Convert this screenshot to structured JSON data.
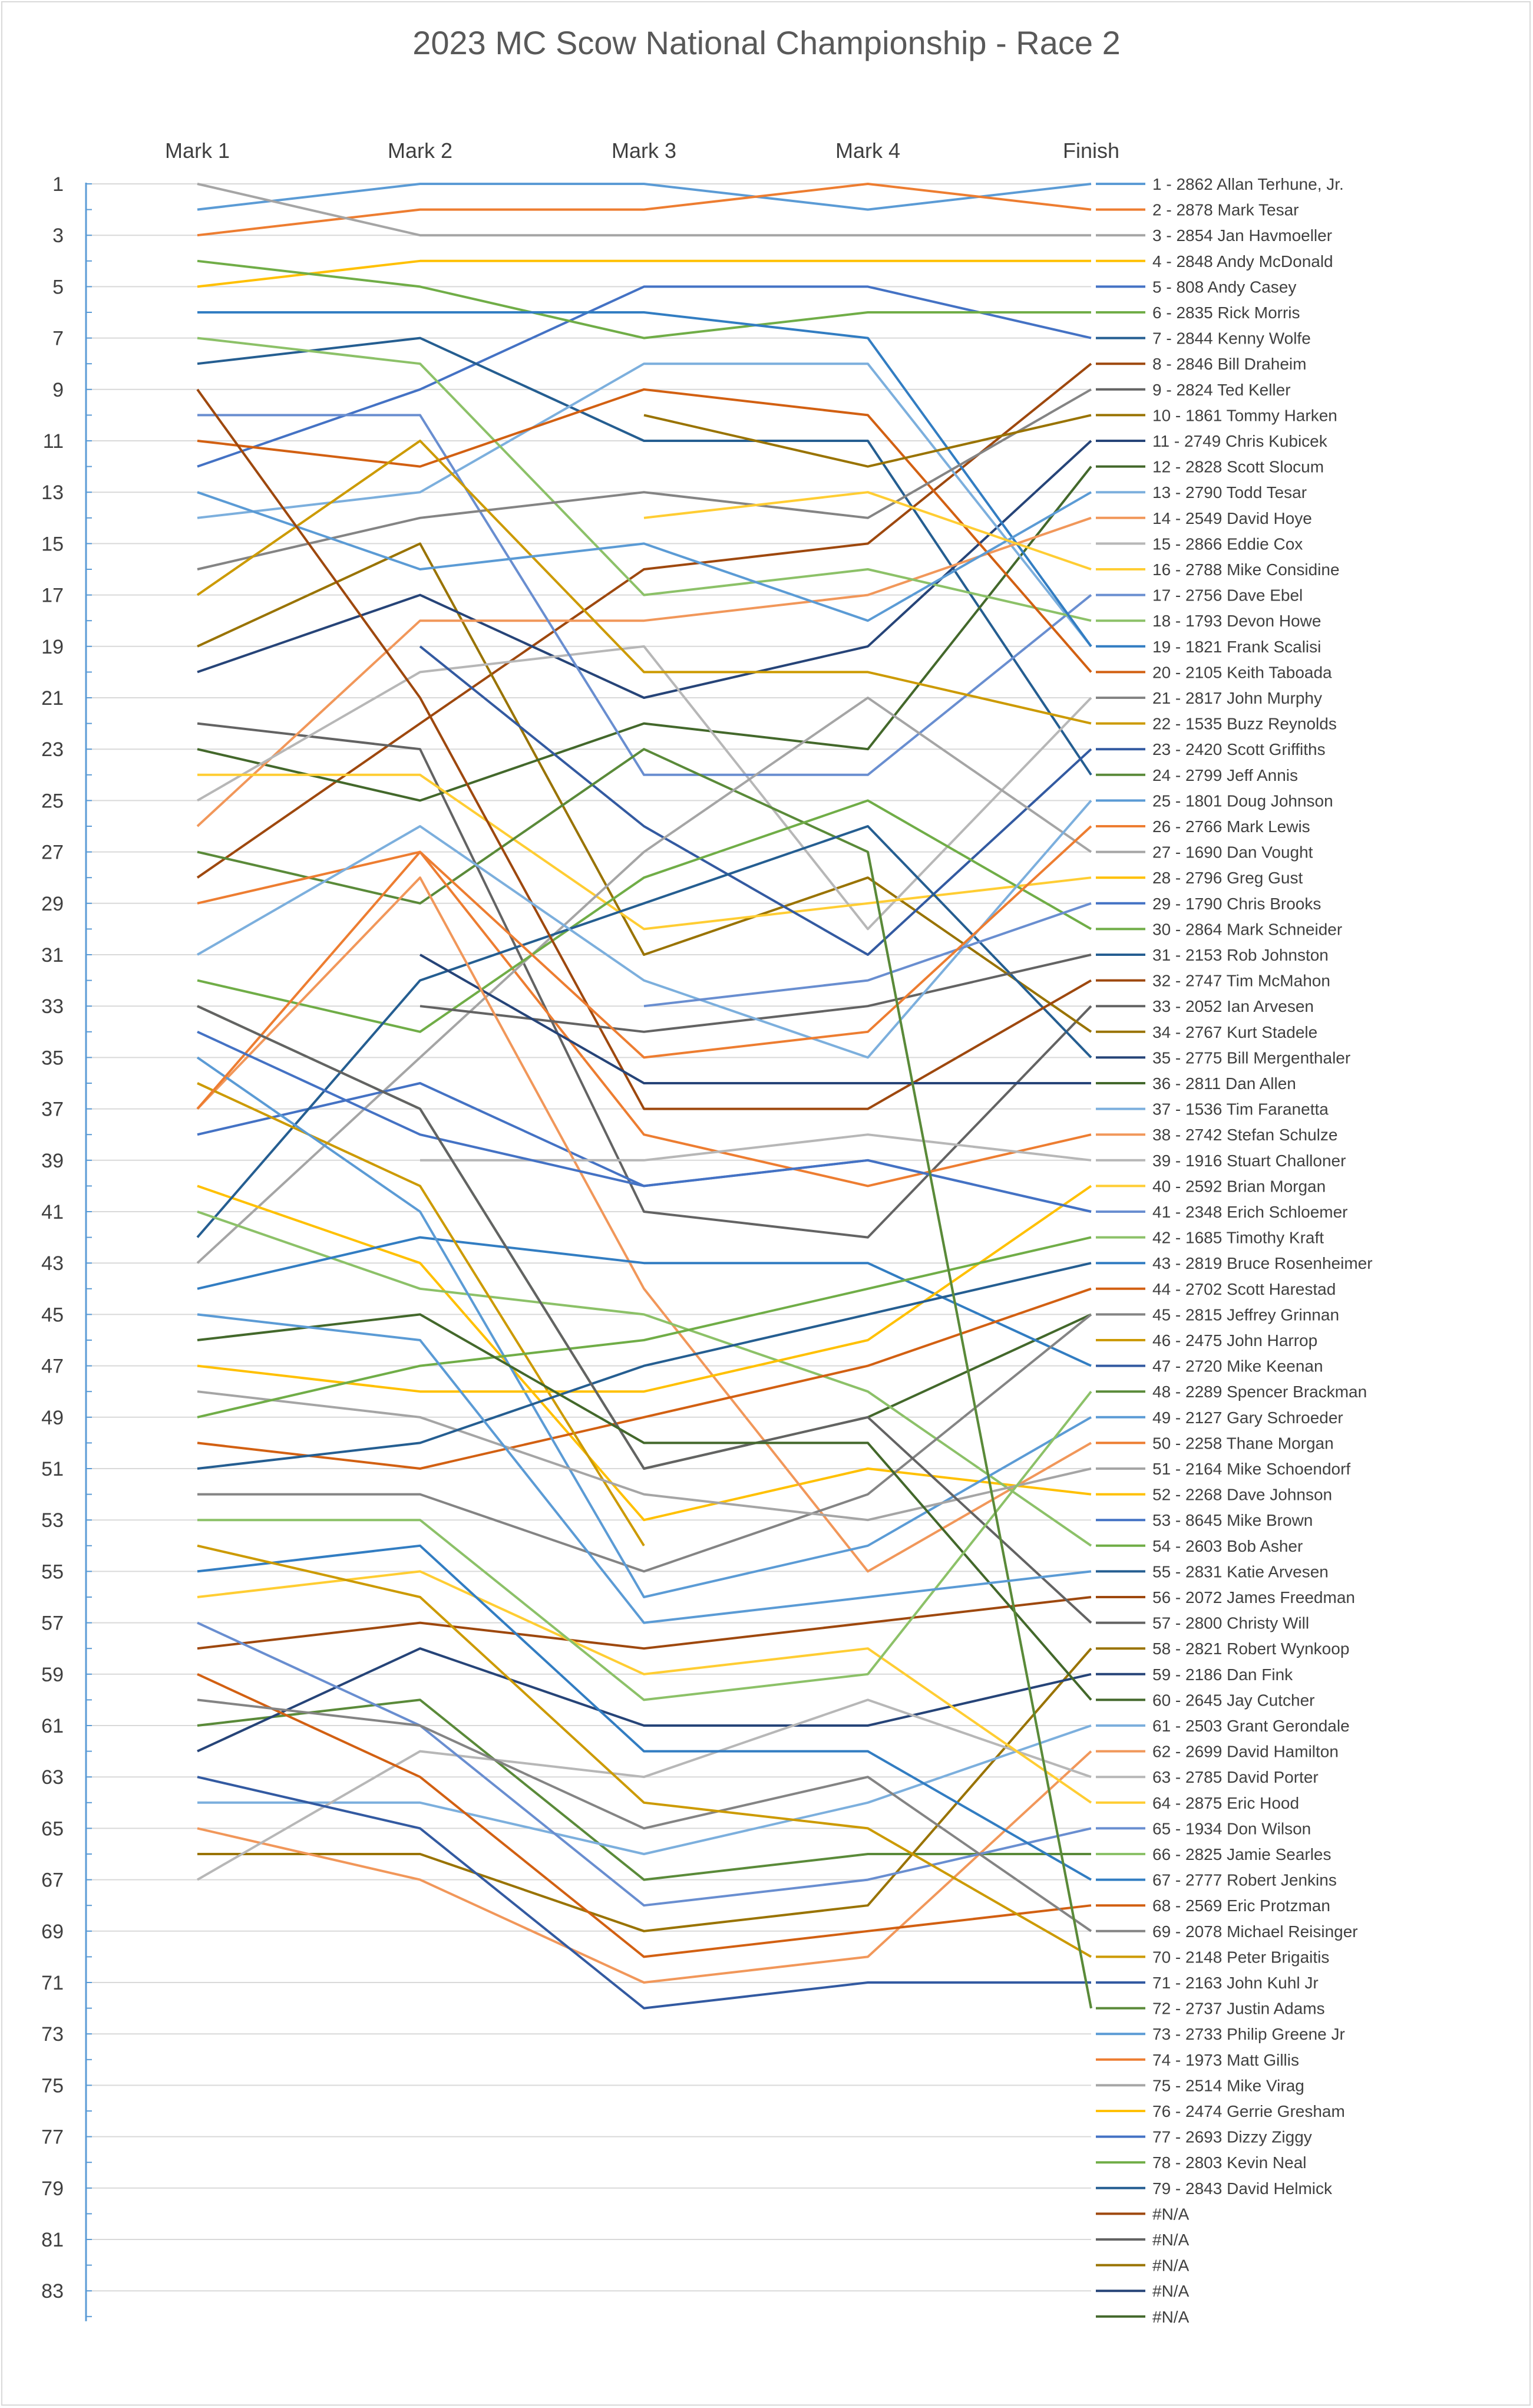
{
  "chart_data": {
    "type": "line",
    "title": "2023 MC Scow National Championship - Race 2",
    "categories": [
      "Mark 1",
      "Mark 2",
      "Mark 3",
      "Mark 4",
      "Finish"
    ],
    "y_axis": {
      "min": 1,
      "max": 84,
      "reversed": true,
      "tick_labels": [
        1,
        3,
        5,
        7,
        9,
        11,
        13,
        15,
        17,
        19,
        21,
        23,
        25,
        27,
        29,
        31,
        33,
        35,
        37,
        39,
        41,
        43,
        45,
        47,
        49,
        51,
        53,
        55,
        57,
        59,
        61,
        63,
        65,
        67,
        69,
        71,
        73,
        75,
        77,
        79,
        81,
        83
      ]
    },
    "grid": true,
    "legend_position": "right",
    "palette": [
      "#5B9BD5",
      "#ED7D31",
      "#A5A5A5",
      "#FFC000",
      "#4472C4",
      "#70AD47",
      "#255E91",
      "#9E480E",
      "#636363",
      "#997300",
      "#264478",
      "#43682B",
      "#7CAFDD",
      "#F1975A",
      "#B7B7B7",
      "#FFCD33",
      "#698ED0",
      "#8CC168",
      "#327DC2",
      "#D26012",
      "#848484",
      "#CC9A00",
      "#335AA1",
      "#5A8A39"
    ],
    "series": [
      {
        "name": "1 - 2862 Allan Terhune, Jr.",
        "values": [
          2,
          1,
          1,
          2,
          1
        ]
      },
      {
        "name": "2 - 2878 Mark Tesar",
        "values": [
          3,
          2,
          2,
          1,
          2
        ]
      },
      {
        "name": "3 - 2854 Jan Havmoeller",
        "values": [
          1,
          3,
          3,
          3,
          3
        ]
      },
      {
        "name": "4 - 2848 Andy McDonald",
        "values": [
          5,
          4,
          4,
          4,
          4
        ]
      },
      {
        "name": "5 - 808 Andy Casey",
        "values": [
          12,
          9,
          5,
          5,
          7
        ]
      },
      {
        "name": "6 - 2835 Rick Morris",
        "values": [
          4,
          5,
          7,
          6,
          6
        ]
      },
      {
        "name": "7 - 2844 Kenny Wolfe",
        "values": [
          8,
          7,
          11,
          11,
          24
        ]
      },
      {
        "name": "8 - 2846 Bill Draheim",
        "values": [
          28,
          22,
          16,
          15,
          8
        ]
      },
      {
        "name": "9 - 2824 Ted Keller",
        "values": [
          22,
          23,
          41,
          42,
          33
        ]
      },
      {
        "name": "10 - 1861 Tommy Harken",
        "values": [
          19,
          15,
          31,
          28,
          34
        ]
      },
      {
        "name": "11 - 2749 Chris Kubicek",
        "values": [
          20,
          17,
          21,
          19,
          11
        ]
      },
      {
        "name": "12 - 2828 Scott Slocum",
        "values": [
          23,
          25,
          22,
          23,
          12
        ]
      },
      {
        "name": "13 - 2790 Todd Tesar",
        "values": [
          14,
          13,
          8,
          8,
          19
        ]
      },
      {
        "name": "14 - 2549 David Hoye",
        "values": [
          26,
          18,
          18,
          17,
          14
        ]
      },
      {
        "name": "15 - 2866 Eddie Cox",
        "values": [
          25,
          20,
          19,
          30,
          21
        ]
      },
      {
        "name": "16 - 2788 Mike Considine",
        "values": [
          24,
          24,
          30,
          29,
          28
        ]
      },
      {
        "name": "17 - 2756 Dave Ebel",
        "values": [
          10,
          10,
          24,
          24,
          17
        ]
      },
      {
        "name": "18 - 1793 Devon Howe",
        "values": [
          7,
          8,
          17,
          16,
          18
        ]
      },
      {
        "name": "19 - 1821 Frank Scalisi",
        "values": [
          6,
          6,
          6,
          7,
          19
        ]
      },
      {
        "name": "20 - 2105 Keith Taboada",
        "values": [
          11,
          12,
          9,
          10,
          20
        ]
      },
      {
        "name": "21 - 2817 John Murphy",
        "values": [
          16,
          14,
          13,
          14,
          9
        ]
      },
      {
        "name": "22 - 1535 Buzz Reynolds",
        "values": [
          17,
          11,
          20,
          20,
          22
        ]
      },
      {
        "name": "23 - 2420 Scott Griffiths",
        "values": [
          null,
          19,
          26,
          31,
          23
        ]
      },
      {
        "name": "24 - 2799 Jeff Annis",
        "values": [
          27,
          29,
          23,
          27,
          72
        ]
      },
      {
        "name": "25 - 1801 Doug Johnson",
        "values": [
          13,
          16,
          15,
          18,
          13
        ]
      },
      {
        "name": "26 - 2766 Mark Lewis",
        "values": [
          29,
          27,
          38,
          40,
          38
        ]
      },
      {
        "name": "27 - 1690 Dan Vought",
        "values": [
          43,
          35,
          27,
          21,
          27
        ]
      },
      {
        "name": "28 - 2796 Greg Gust",
        "values": [
          40,
          43,
          53,
          51,
          52
        ]
      },
      {
        "name": "29 - 1790 Chris Brooks",
        "values": [
          38,
          36,
          40,
          39,
          41
        ]
      },
      {
        "name": "30 - 2864 Mark Schneider",
        "values": [
          32,
          34,
          28,
          25,
          30
        ]
      },
      {
        "name": "31 - 2153 Rob Johnston",
        "values": [
          42,
          32,
          29,
          26,
          35
        ]
      },
      {
        "name": "32 - 2747 Tim McMahon",
        "values": [
          9,
          21,
          37,
          37,
          32
        ]
      },
      {
        "name": "33 - 2052 Ian Arvesen",
        "values": [
          null,
          33,
          34,
          33,
          31
        ]
      },
      {
        "name": "34 - 2767 Kurt Stadele",
        "values": [
          null,
          null,
          10,
          12,
          10
        ]
      },
      {
        "name": "35 - 2775 Bill Mergenthaler",
        "values": [
          null,
          31,
          36,
          36,
          36
        ]
      },
      {
        "name": "36 - 2811 Dan Allen",
        "values": [
          33,
          37,
          51,
          49,
          45
        ]
      },
      {
        "name": "37 - 1536 Tim Faranetta",
        "values": [
          31,
          26,
          32,
          35,
          25
        ]
      },
      {
        "name": "38 - 2742 Stefan Schulze",
        "values": [
          37,
          28,
          44,
          55,
          50
        ]
      },
      {
        "name": "39 - 1916 Stuart Challoner",
        "values": [
          null,
          39,
          39,
          38,
          39
        ]
      },
      {
        "name": "40 - 2592 Brian Morgan",
        "values": [
          null,
          null,
          14,
          13,
          16
        ]
      },
      {
        "name": "41 - 2348 Erich Schloemer",
        "values": [
          null,
          null,
          33,
          32,
          29
        ]
      },
      {
        "name": "42 - 1685 Timothy Kraft",
        "values": [
          41,
          44,
          45,
          48,
          54
        ]
      },
      {
        "name": "43 - 2819 Bruce Rosenheimer",
        "values": [
          44,
          42,
          43,
          43,
          47
        ]
      },
      {
        "name": "44 - 2702 Scott Harestad",
        "values": [
          50,
          51,
          49,
          47,
          44
        ]
      },
      {
        "name": "45 - 2815 Jeffrey Grinnan",
        "values": [
          52,
          52,
          55,
          52,
          45
        ]
      },
      {
        "name": "46 - 2475 John Harrop",
        "values": [
          36,
          40,
          54,
          null,
          null
        ]
      },
      {
        "name": "47 - 2720 Mike Keenan",
        "values": [
          null,
          null,
          null,
          null,
          null
        ]
      },
      {
        "name": "48 - 2289 Spencer Brackman",
        "values": [
          61,
          60,
          67,
          66,
          66
        ]
      },
      {
        "name": "49 - 2127 Gary Schroeder",
        "values": [
          35,
          41,
          56,
          54,
          49
        ]
      },
      {
        "name": "50 - 2258 Thane Morgan",
        "values": [
          37,
          27,
          35,
          34,
          26
        ]
      },
      {
        "name": "51 - 2164 Mike Schoendorf",
        "values": [
          48,
          49,
          52,
          53,
          51
        ]
      },
      {
        "name": "52 - 2268 Dave Johnson",
        "values": [
          47,
          48,
          48,
          46,
          40
        ]
      },
      {
        "name": "53 - 8645 Mike Brown",
        "values": [
          34,
          38,
          40,
          39,
          41
        ]
      },
      {
        "name": "54 - 2603 Bob Asher",
        "values": [
          49,
          47,
          46,
          44,
          42
        ]
      },
      {
        "name": "55 - 2831 Katie Arvesen",
        "values": [
          51,
          50,
          47,
          45,
          43
        ]
      },
      {
        "name": "56 - 2072 James Freedman",
        "values": [
          58,
          57,
          58,
          57,
          56
        ]
      },
      {
        "name": "57 - 2800 Christy Will",
        "values": [
          33,
          37,
          51,
          49,
          57
        ]
      },
      {
        "name": "58 - 2821 Robert Wynkoop",
        "values": [
          66,
          66,
          69,
          68,
          58
        ]
      },
      {
        "name": "59 - 2186 Dan Fink",
        "values": [
          62,
          58,
          61,
          61,
          59
        ]
      },
      {
        "name": "60 - 2645 Jay Cutcher",
        "values": [
          46,
          45,
          50,
          50,
          60
        ]
      },
      {
        "name": "61 - 2503 Grant Gerondale",
        "values": [
          64,
          64,
          66,
          64,
          61
        ]
      },
      {
        "name": "62 - 2699 David Hamilton",
        "values": [
          65,
          67,
          71,
          70,
          62
        ]
      },
      {
        "name": "63 - 2785 David Porter",
        "values": [
          67,
          62,
          63,
          60,
          63
        ]
      },
      {
        "name": "64 - 2875 Eric Hood",
        "values": [
          56,
          55,
          59,
          58,
          64
        ]
      },
      {
        "name": "65 - 1934 Don Wilson",
        "values": [
          57,
          61,
          68,
          67,
          65
        ]
      },
      {
        "name": "66 - 2825 Jamie Searles",
        "values": [
          53,
          53,
          60,
          59,
          48
        ]
      },
      {
        "name": "67 - 2777 Robert Jenkins",
        "values": [
          55,
          54,
          62,
          62,
          67
        ]
      },
      {
        "name": "68 - 2569 Eric Protzman",
        "values": [
          59,
          63,
          70,
          69,
          68
        ]
      },
      {
        "name": "69 - 2078 Michael Reisinger",
        "values": [
          60,
          61,
          65,
          63,
          69
        ]
      },
      {
        "name": "70 - 2148 Peter Brigaitis",
        "values": [
          54,
          56,
          64,
          65,
          70
        ]
      },
      {
        "name": "71 - 2163 John Kuhl Jr",
        "values": [
          63,
          65,
          72,
          71,
          71
        ]
      },
      {
        "name": "72 - 2737 Justin Adams",
        "values": [
          null,
          null,
          null,
          27,
          72
        ]
      },
      {
        "name": "73 - 2733 Philip Greene Jr",
        "values": [
          45,
          46,
          57,
          56,
          55
        ]
      },
      {
        "name": "74 - 1973 Matt Gillis",
        "values": [
          null,
          null,
          null,
          null,
          null
        ]
      },
      {
        "name": "75 - 2514 Mike Virag",
        "values": [
          null,
          null,
          null,
          null,
          null
        ]
      },
      {
        "name": "76 - 2474 Gerrie Gresham",
        "values": [
          null,
          null,
          null,
          null,
          null
        ]
      },
      {
        "name": "77 - 2693 Dizzy Ziggy",
        "values": [
          null,
          null,
          null,
          null,
          null
        ]
      },
      {
        "name": "78 - 2803 Kevin Neal",
        "values": [
          null,
          null,
          null,
          null,
          null
        ]
      },
      {
        "name": "79 - 2843 David Helmick",
        "values": [
          null,
          null,
          null,
          null,
          null
        ]
      },
      {
        "name": "#N/A",
        "values": [
          null,
          null,
          null,
          null,
          null
        ]
      },
      {
        "name": "#N/A",
        "values": [
          null,
          null,
          null,
          null,
          null
        ]
      },
      {
        "name": "#N/A",
        "values": [
          null,
          null,
          null,
          null,
          null
        ]
      },
      {
        "name": "#N/A",
        "values": [
          null,
          null,
          null,
          null,
          null
        ]
      },
      {
        "name": "#N/A",
        "values": [
          null,
          null,
          null,
          null,
          null
        ]
      }
    ]
  }
}
